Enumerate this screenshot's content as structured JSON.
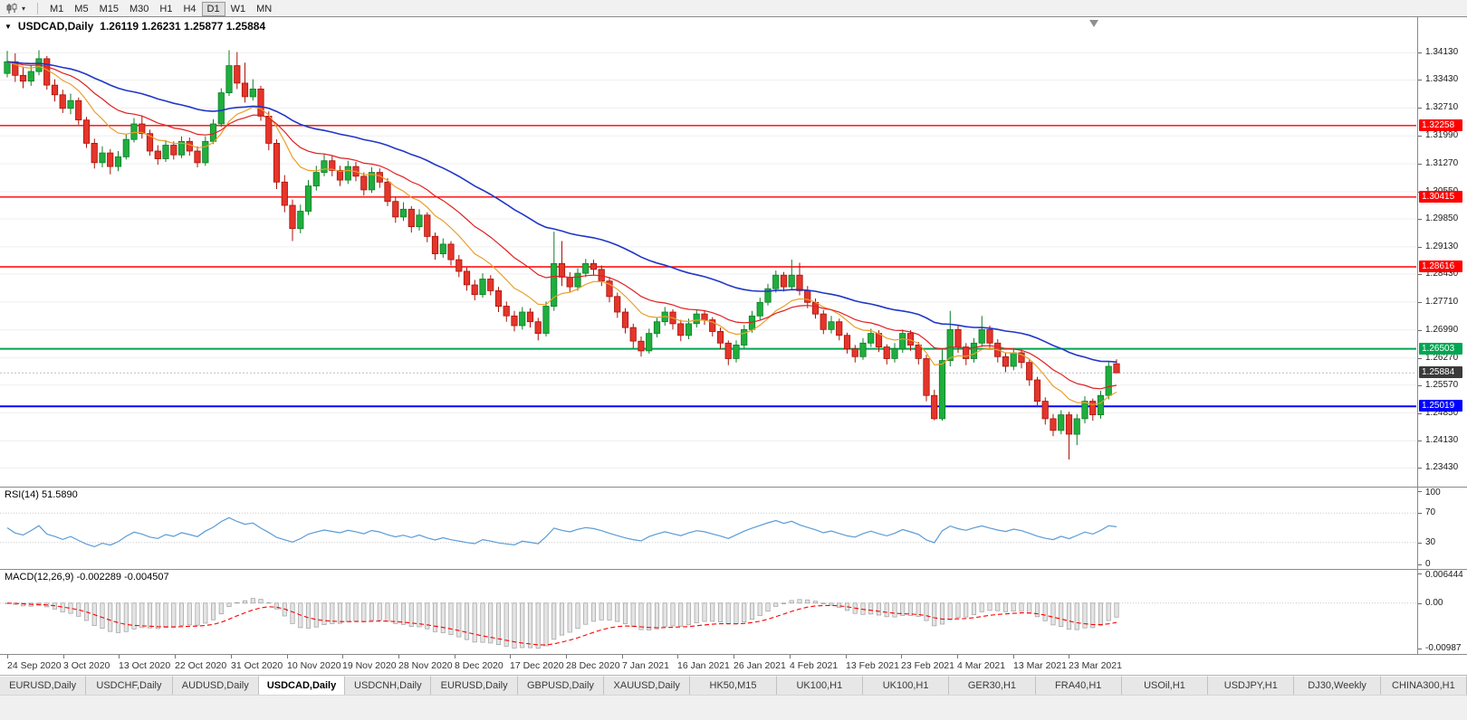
{
  "toolbar": {
    "timeframes": [
      "M1",
      "M5",
      "M15",
      "M30",
      "H1",
      "H4",
      "D1",
      "W1",
      "MN"
    ],
    "active_timeframe": "D1"
  },
  "chart_data": {
    "type": "candlestick",
    "symbol_title": "USDCAD,Daily",
    "ohlc": "1.26119 1.26231 1.25877 1.25884",
    "price_range": {
      "max": 1.3505,
      "min": 1.2295
    },
    "colors": {
      "up_fill": "#1fae3d",
      "up_stroke": "#0e7d26",
      "down_fill": "#e5352b",
      "down_stroke": "#a81208"
    },
    "moving_averages": [
      {
        "period": 10,
        "color": "#e8a02c",
        "width": 1.2
      },
      {
        "period": 20,
        "color": "#e02020",
        "width": 1.2
      },
      {
        "period": 45,
        "color": "#2036c8",
        "width": 1.6
      }
    ],
    "hlines": [
      {
        "price": 1.32258,
        "label": "1.32258",
        "color": "#ff0000",
        "width": 1.4
      },
      {
        "price": 1.30415,
        "label": "1.30415",
        "color": "#ff0000",
        "width": 1.4
      },
      {
        "price": 1.28616,
        "label": "1.28616",
        "color": "#ff0000",
        "width": 1.4
      },
      {
        "price": 1.26503,
        "label": "1.26503",
        "color": "#00a651",
        "width": 2
      },
      {
        "price": 1.25019,
        "label": "1.25019",
        "color": "#0000ff",
        "width": 2
      }
    ],
    "current_price": {
      "label": "1.25884",
      "price": 1.25884,
      "bg": "#3a3a3a"
    },
    "date_labels": [
      "24 Sep 2020",
      "3 Oct 2020",
      "13 Oct 2020",
      "22 Oct 2020",
      "31 Oct 2020",
      "10 Nov 2020",
      "19 Nov 2020",
      "28 Nov 2020",
      "8 Dec 2020",
      "17 Dec 2020",
      "28 Dec 2020",
      "7 Jan 2021",
      "16 Jan 2021",
      "26 Jan 2021",
      "4 Feb 2021",
      "13 Feb 2021",
      "23 Feb 2021",
      "4 Mar 2021",
      "13 Mar 2021",
      "23 Mar 2021"
    ],
    "candles": [
      [
        1.336,
        1.3418,
        1.335,
        1.339
      ],
      [
        1.339,
        1.3412,
        1.3338,
        1.3355
      ],
      [
        1.3355,
        1.3378,
        1.3322,
        1.334
      ],
      [
        1.334,
        1.338,
        1.3328,
        1.3365
      ],
      [
        1.3365,
        1.342,
        1.3355,
        1.3398
      ],
      [
        1.3398,
        1.3405,
        1.3318,
        1.333
      ],
      [
        1.333,
        1.3345,
        1.3288,
        1.3305
      ],
      [
        1.3305,
        1.3318,
        1.3258,
        1.327
      ],
      [
        1.327,
        1.3308,
        1.3255,
        1.329
      ],
      [
        1.329,
        1.3298,
        1.3228,
        1.324
      ],
      [
        1.324,
        1.3248,
        1.3168,
        1.318
      ],
      [
        1.318,
        1.3192,
        1.3115,
        1.313
      ],
      [
        1.313,
        1.3172,
        1.3118,
        1.3155
      ],
      [
        1.3155,
        1.3165,
        1.31,
        1.312
      ],
      [
        1.312,
        1.316,
        1.3108,
        1.3145
      ],
      [
        1.3145,
        1.3205,
        1.3138,
        1.319
      ],
      [
        1.319,
        1.3245,
        1.3182,
        1.323
      ],
      [
        1.323,
        1.3252,
        1.3192,
        1.3205
      ],
      [
        1.3205,
        1.3215,
        1.3148,
        1.316
      ],
      [
        1.316,
        1.3175,
        1.3125,
        1.314
      ],
      [
        1.314,
        1.3188,
        1.3132,
        1.3175
      ],
      [
        1.3175,
        1.3185,
        1.3138,
        1.315
      ],
      [
        1.315,
        1.3198,
        1.3142,
        1.3185
      ],
      [
        1.3185,
        1.3195,
        1.3148,
        1.316
      ],
      [
        1.316,
        1.3172,
        1.3118,
        1.313
      ],
      [
        1.313,
        1.3198,
        1.3122,
        1.3185
      ],
      [
        1.3185,
        1.3242,
        1.3178,
        1.323
      ],
      [
        1.323,
        1.3322,
        1.3222,
        1.331
      ],
      [
        1.331,
        1.342,
        1.3302,
        1.338
      ],
      [
        1.338,
        1.3415,
        1.332,
        1.3335
      ],
      [
        1.3335,
        1.3388,
        1.3285,
        1.33
      ],
      [
        1.33,
        1.3345,
        1.329,
        1.332
      ],
      [
        1.332,
        1.3328,
        1.3238,
        1.325
      ],
      [
        1.325,
        1.3262,
        1.3162,
        1.318
      ],
      [
        1.318,
        1.319,
        1.3062,
        1.308
      ],
      [
        1.308,
        1.3098,
        1.3002,
        1.302
      ],
      [
        1.302,
        1.3035,
        1.2928,
        1.296
      ],
      [
        1.296,
        1.3022,
        1.2948,
        1.3005
      ],
      [
        1.3005,
        1.3085,
        1.2995,
        1.307
      ],
      [
        1.307,
        1.3122,
        1.3058,
        1.3105
      ],
      [
        1.3105,
        1.3152,
        1.3095,
        1.3135
      ],
      [
        1.3135,
        1.3148,
        1.3095,
        1.311
      ],
      [
        1.311,
        1.3122,
        1.307,
        1.3085
      ],
      [
        1.3085,
        1.3135,
        1.3075,
        1.312
      ],
      [
        1.312,
        1.3132,
        1.3082,
        1.3095
      ],
      [
        1.3095,
        1.3105,
        1.3045,
        1.306
      ],
      [
        1.306,
        1.3118,
        1.3052,
        1.3105
      ],
      [
        1.3105,
        1.3115,
        1.3065,
        1.308
      ],
      [
        1.308,
        1.309,
        1.3018,
        1.303
      ],
      [
        1.303,
        1.3042,
        1.2975,
        1.299
      ],
      [
        1.299,
        1.3028,
        1.298,
        1.301
      ],
      [
        1.301,
        1.3018,
        1.295,
        1.2965
      ],
      [
        1.2965,
        1.301,
        1.2955,
        1.2995
      ],
      [
        1.2995,
        1.3002,
        1.2925,
        1.294
      ],
      [
        1.294,
        1.295,
        1.288,
        1.2895
      ],
      [
        1.2895,
        1.2935,
        1.2885,
        1.292
      ],
      [
        1.292,
        1.2928,
        1.2865,
        1.288
      ],
      [
        1.288,
        1.2892,
        1.2835,
        1.285
      ],
      [
        1.285,
        1.286,
        1.28,
        1.2815
      ],
      [
        1.2815,
        1.2828,
        1.2775,
        1.279
      ],
      [
        1.279,
        1.2845,
        1.2782,
        1.283
      ],
      [
        1.283,
        1.284,
        1.2788,
        1.28
      ],
      [
        1.28,
        1.281,
        1.2745,
        1.276
      ],
      [
        1.276,
        1.2772,
        1.272,
        1.2735
      ],
      [
        1.2735,
        1.2748,
        1.2695,
        1.271
      ],
      [
        1.271,
        1.2758,
        1.27,
        1.2745
      ],
      [
        1.2745,
        1.2755,
        1.2705,
        1.272
      ],
      [
        1.272,
        1.273,
        1.2672,
        1.269
      ],
      [
        1.269,
        1.2772,
        1.2682,
        1.276
      ],
      [
        1.276,
        1.2952,
        1.2748,
        1.287
      ],
      [
        1.287,
        1.2928,
        1.2812,
        1.2835
      ],
      [
        1.2835,
        1.2848,
        1.2795,
        1.281
      ],
      [
        1.281,
        1.2858,
        1.28,
        1.2845
      ],
      [
        1.2845,
        1.2882,
        1.2835,
        1.287
      ],
      [
        1.287,
        1.288,
        1.284,
        1.2855
      ],
      [
        1.2855,
        1.2865,
        1.2812,
        1.2825
      ],
      [
        1.2825,
        1.2835,
        1.277,
        1.2785
      ],
      [
        1.2785,
        1.2795,
        1.273,
        1.2745
      ],
      [
        1.2745,
        1.2755,
        1.269,
        1.2705
      ],
      [
        1.2705,
        1.2715,
        1.2652,
        1.267
      ],
      [
        1.267,
        1.2682,
        1.263,
        1.2645
      ],
      [
        1.2645,
        1.2702,
        1.2638,
        1.269
      ],
      [
        1.269,
        1.2732,
        1.268,
        1.272
      ],
      [
        1.272,
        1.2758,
        1.271,
        1.2745
      ],
      [
        1.2745,
        1.2752,
        1.27,
        1.2715
      ],
      [
        1.2715,
        1.2725,
        1.267,
        1.2685
      ],
      [
        1.2685,
        1.2728,
        1.2675,
        1.2715
      ],
      [
        1.2715,
        1.2752,
        1.2705,
        1.274
      ],
      [
        1.274,
        1.2748,
        1.2712,
        1.2725
      ],
      [
        1.2725,
        1.2732,
        1.2682,
        1.2695
      ],
      [
        1.2695,
        1.2705,
        1.265,
        1.2665
      ],
      [
        1.2665,
        1.2672,
        1.2608,
        1.2625
      ],
      [
        1.2625,
        1.2672,
        1.2615,
        1.266
      ],
      [
        1.266,
        1.2712,
        1.2652,
        1.27
      ],
      [
        1.27,
        1.2748,
        1.2692,
        1.2735
      ],
      [
        1.2735,
        1.2782,
        1.2725,
        1.277
      ],
      [
        1.277,
        1.2818,
        1.2762,
        1.2805
      ],
      [
        1.2805,
        1.2852,
        1.2795,
        1.284
      ],
      [
        1.284,
        1.2848,
        1.2798,
        1.281
      ],
      [
        1.281,
        1.288,
        1.2802,
        1.284
      ],
      [
        1.284,
        1.2872,
        1.2788,
        1.28
      ],
      [
        1.28,
        1.2812,
        1.2755,
        1.277
      ],
      [
        1.277,
        1.278,
        1.2728,
        1.274
      ],
      [
        1.274,
        1.275,
        1.2688,
        1.27
      ],
      [
        1.27,
        1.2735,
        1.269,
        1.272
      ],
      [
        1.272,
        1.2728,
        1.2672,
        1.2685
      ],
      [
        1.2685,
        1.2692,
        1.2638,
        1.265
      ],
      [
        1.265,
        1.266,
        1.2615,
        1.263
      ],
      [
        1.263,
        1.2678,
        1.2622,
        1.2665
      ],
      [
        1.2665,
        1.2702,
        1.2655,
        1.269
      ],
      [
        1.269,
        1.2698,
        1.2642,
        1.2655
      ],
      [
        1.2655,
        1.2662,
        1.261,
        1.2625
      ],
      [
        1.2625,
        1.2665,
        1.2615,
        1.265
      ],
      [
        1.265,
        1.27,
        1.264,
        1.269
      ],
      [
        1.269,
        1.2698,
        1.2645,
        1.266
      ],
      [
        1.266,
        1.2668,
        1.261,
        1.2625
      ],
      [
        1.2625,
        1.2635,
        1.2515,
        1.253
      ],
      [
        1.253,
        1.2545,
        1.2466,
        1.247
      ],
      [
        1.247,
        1.2648,
        1.2465,
        1.262
      ],
      [
        1.262,
        1.2748,
        1.2605,
        1.27
      ],
      [
        1.27,
        1.2712,
        1.264,
        1.2655
      ],
      [
        1.2655,
        1.2665,
        1.2608,
        1.2625
      ],
      [
        1.2625,
        1.2678,
        1.2615,
        1.2665
      ],
      [
        1.2665,
        1.2735,
        1.2655,
        1.27
      ],
      [
        1.27,
        1.271,
        1.265,
        1.2665
      ],
      [
        1.2665,
        1.2675,
        1.2615,
        1.263
      ],
      [
        1.263,
        1.264,
        1.259,
        1.2605
      ],
      [
        1.2605,
        1.2652,
        1.2595,
        1.264
      ],
      [
        1.264,
        1.2648,
        1.26,
        1.2615
      ],
      [
        1.2615,
        1.2622,
        1.2555,
        1.257
      ],
      [
        1.257,
        1.2578,
        1.25,
        1.2515
      ],
      [
        1.2515,
        1.2525,
        1.2455,
        1.247
      ],
      [
        1.247,
        1.2482,
        1.2425,
        1.244
      ],
      [
        1.244,
        1.2492,
        1.243,
        1.248
      ],
      [
        1.248,
        1.2488,
        1.2365,
        1.243
      ],
      [
        1.243,
        1.2482,
        1.2402,
        1.247
      ],
      [
        1.247,
        1.2528,
        1.2458,
        1.2515
      ],
      [
        1.2515,
        1.2522,
        1.2465,
        1.248
      ],
      [
        1.248,
        1.2542,
        1.247,
        1.253
      ],
      [
        1.253,
        1.2618,
        1.252,
        1.2605
      ],
      [
        1.26119,
        1.26231,
        1.25877,
        1.25884
      ]
    ]
  },
  "price_scale": {
    "ticks": [
      "1.34130",
      "1.33430",
      "1.32710",
      "1.31990",
      "1.31270",
      "1.30550",
      "1.29850",
      "1.29130",
      "1.28430",
      "1.27710",
      "1.26990",
      "1.26270",
      "1.25570",
      "1.24850",
      "1.24130",
      "1.23430"
    ]
  },
  "rsi": {
    "label": "RSI(14) 51.5890",
    "period": 14,
    "value": "51.5890",
    "color": "#5b9bd5",
    "levels": [
      70,
      30
    ],
    "ticks": [
      "100",
      "70",
      "30",
      "0"
    ]
  },
  "macd": {
    "label": "MACD(12,26,9) -0.002289 -0.004507",
    "fast": 12,
    "slow": 26,
    "signal": 9,
    "values": [
      "-0.002289",
      "-0.004507"
    ],
    "signal_color": "#ff0000",
    "hist_fill": "#e4e4e4",
    "hist_stroke": "#9e9e9e",
    "scale_max": 0.006444,
    "scale_min": -0.00987,
    "ticks": [
      "0.006444",
      "0.00",
      "-0.00987"
    ],
    "tick_values": [
      0.006444,
      0,
      -0.00987
    ]
  },
  "tabs": {
    "items": [
      "EURUSD,Daily",
      "USDCHF,Daily",
      "AUDUSD,Daily",
      "USDCAD,Daily",
      "USDCNH,Daily",
      "EURUSD,Daily",
      "GBPUSD,Daily",
      "XAUUSD,Daily",
      "HK50,M15",
      "UK100,H1",
      "UK100,H1",
      "GER30,H1",
      "FRA40,H1",
      "USOil,H1",
      "USDJPY,H1",
      "DJ30,Weekly",
      "CHINA300,H1"
    ],
    "active_index": 3
  }
}
